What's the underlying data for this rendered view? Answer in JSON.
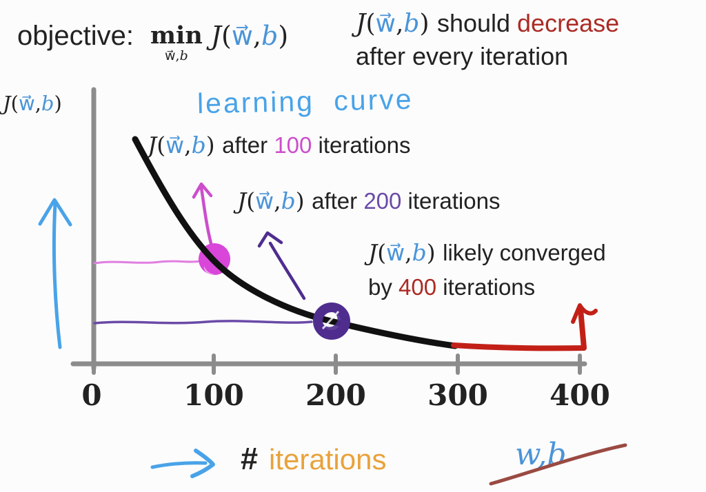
{
  "colors": {
    "bg": "#fcfcfc",
    "ink": "#222222",
    "blue": "#4a94d8",
    "lightblue": "#49a3e8",
    "magenta": "#cc4ecc",
    "magentaDot": "#d946d9",
    "magentaLight": "#e07ee0",
    "purple": "#6a4aa8",
    "purpleDeep": "#4f2d8f",
    "darkred": "#ab2b25",
    "red": "#c22017",
    "strike": "#9a4a42",
    "orange": "#e9a23b",
    "axis": "#8c8c8c",
    "curve": "#111111"
  },
  "objective": {
    "prefix": "objective:",
    "min": "min",
    "min_sub": [
      {
        "t": "w⃗",
        "c": "ink",
        "f": "serif"
      },
      {
        "t": ",",
        "c": "ink",
        "f": "serif"
      },
      {
        "t": "b",
        "c": "ink",
        "f": "serif",
        "i": true
      }
    ],
    "formula": [
      {
        "t": "J",
        "c": "ink",
        "f": "serif",
        "i": true
      },
      {
        "t": "(",
        "c": "ink",
        "f": "serif"
      },
      {
        "t": "w⃗",
        "c": "blue",
        "f": "serif"
      },
      {
        "t": ",",
        "c": "ink",
        "f": "serif"
      },
      {
        "t": "b",
        "c": "blue",
        "f": "serif",
        "i": true
      },
      {
        "t": ")",
        "c": "ink",
        "f": "serif"
      }
    ]
  },
  "statement": {
    "line1": [
      {
        "t": "J",
        "c": "ink",
        "f": "serif",
        "i": true
      },
      {
        "t": "(",
        "c": "ink",
        "f": "serif"
      },
      {
        "t": "w⃗",
        "c": "blue",
        "f": "serif"
      },
      {
        "t": ",",
        "c": "ink",
        "f": "serif"
      },
      {
        "t": "b",
        "c": "blue",
        "f": "serif",
        "i": true
      },
      {
        "t": ") ",
        "c": "ink",
        "f": "serif"
      },
      {
        "t": " should ",
        "c": "ink",
        "f": "sans"
      },
      {
        "t": "decrease",
        "c": "darkred",
        "f": "sans"
      }
    ],
    "line2": [
      {
        "t": "after every iteration",
        "c": "ink",
        "f": "sans"
      }
    ]
  },
  "ylabel": [
    {
      "t": "J",
      "c": "ink",
      "f": "serif",
      "i": true
    },
    {
      "t": "(",
      "c": "ink",
      "f": "serif"
    },
    {
      "t": "w⃗",
      "c": "blue",
      "f": "serif"
    },
    {
      "t": ",",
      "c": "ink",
      "f": "serif"
    },
    {
      "t": "b",
      "c": "blue",
      "f": "serif",
      "i": true
    },
    {
      "t": ")",
      "c": "ink",
      "f": "serif"
    }
  ],
  "chart": {
    "handwritten_title": "learning curve",
    "annotation_100": [
      {
        "t": "J",
        "c": "ink",
        "f": "serif",
        "i": true
      },
      {
        "t": "(",
        "c": "ink",
        "f": "serif"
      },
      {
        "t": "w⃗",
        "c": "blue",
        "f": "serif"
      },
      {
        "t": ",",
        "c": "ink",
        "f": "serif"
      },
      {
        "t": "b",
        "c": "blue",
        "f": "serif",
        "i": true
      },
      {
        "t": ") ",
        "c": "ink",
        "f": "serif"
      },
      {
        "t": " after ",
        "c": "ink",
        "f": "sans"
      },
      {
        "t": "100",
        "c": "magenta",
        "f": "sans"
      },
      {
        "t": " iterations",
        "c": "ink",
        "f": "sans"
      }
    ],
    "annotation_200": [
      {
        "t": "J",
        "c": "ink",
        "f": "serif",
        "i": true
      },
      {
        "t": "(",
        "c": "ink",
        "f": "serif"
      },
      {
        "t": "w⃗",
        "c": "blue",
        "f": "serif"
      },
      {
        "t": ",",
        "c": "ink",
        "f": "serif"
      },
      {
        "t": "b",
        "c": "blue",
        "f": "serif",
        "i": true
      },
      {
        "t": ") ",
        "c": "ink",
        "f": "serif"
      },
      {
        "t": " after ",
        "c": "ink",
        "f": "sans"
      },
      {
        "t": "200",
        "c": "purple",
        "f": "sans"
      },
      {
        "t": " iterations",
        "c": "ink",
        "f": "sans"
      }
    ],
    "annotation_400_line1": [
      {
        "t": "J",
        "c": "ink",
        "f": "serif",
        "i": true
      },
      {
        "t": "(",
        "c": "ink",
        "f": "serif"
      },
      {
        "t": "w⃗",
        "c": "blue",
        "f": "serif"
      },
      {
        "t": ",",
        "c": "ink",
        "f": "serif"
      },
      {
        "t": "b",
        "c": "blue",
        "f": "serif",
        "i": true
      },
      {
        "t": ") ",
        "c": "ink",
        "f": "serif"
      },
      {
        "t": " likely converged",
        "c": "ink",
        "f": "sans"
      }
    ],
    "annotation_400_line2": [
      {
        "t": "by ",
        "c": "ink",
        "f": "sans"
      },
      {
        "t": "400",
        "c": "darkred",
        "f": "sans"
      },
      {
        "t": " iterations",
        "c": "ink",
        "f": "sans"
      }
    ],
    "xaxis": {
      "ticks": [
        "0",
        "100",
        "200",
        "300",
        "400"
      ]
    }
  },
  "footer": {
    "hash": "#",
    "iterations": "iterations",
    "wb": "w,b"
  },
  "chart_data": {
    "type": "line",
    "title": "learning curve",
    "xlabel": "# iterations",
    "ylabel": "J(w⃗,b)",
    "x_ticks": [
      0,
      100,
      200,
      300,
      400
    ],
    "xlim": [
      0,
      400
    ],
    "y_axis_ticks": "none (unlabeled cost axis)",
    "grid": false,
    "legend": "none",
    "series": [
      {
        "name": "cost J(w⃗,b) vs iterations (black curve)",
        "x": [
          35,
          60,
          100,
          150,
          200,
          250,
          300,
          350,
          400
        ],
        "y_relative": [
          1.0,
          0.78,
          0.46,
          0.3,
          0.19,
          0.13,
          0.08,
          0.074,
          0.07
        ]
      }
    ],
    "highlight_segments": [
      {
        "name": "likely-converged region drawn in red",
        "x_start": 300,
        "x_end": 400
      }
    ],
    "markers": [
      {
        "x": 100,
        "y_relative": 0.46,
        "style": "filled dot",
        "color": "magenta",
        "label": "J(w⃗,b) after 100 iterations"
      },
      {
        "x": 200,
        "y_relative": 0.19,
        "style": "scribbled ring",
        "color": "purple",
        "label": "J(w⃗,b) after 200 iterations"
      },
      {
        "x": 400,
        "y_relative": 0.07,
        "style": "red up arrow",
        "color": "dark-red",
        "label": "J(w⃗,b) likely converged by 400 iterations"
      }
    ]
  }
}
